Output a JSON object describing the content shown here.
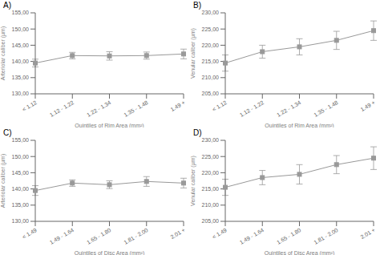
{
  "chart_data": [
    {
      "type": "line",
      "title": "A)",
      "xlabel": "Quintiles of Rim Area (mm²)",
      "ylabel": "Arteriolar caliber (µm)",
      "categories": [
        "< 1.12",
        "1.12 - 1.22",
        "1.22 - 1.34",
        "1.35 - 1.48",
        "1.49 +"
      ],
      "values": [
        139.5,
        141.8,
        141.7,
        141.8,
        142.3
      ],
      "errors": [
        1.2,
        1.0,
        1.3,
        1.1,
        1.5
      ],
      "color": "#999999",
      "marker": "square",
      "grid": false,
      "ylim": [
        130.0,
        155.0
      ],
      "yticks": [
        {
          "value": 130.0,
          "label": "130,00"
        },
        {
          "value": 135.0,
          "label": "135,00"
        },
        {
          "value": 140.0,
          "label": "140,00"
        },
        {
          "value": 145.0,
          "label": "145,00"
        },
        {
          "value": 150.0,
          "label": "150,00"
        },
        {
          "value": 155.0,
          "label": "155,00"
        }
      ]
    },
    {
      "type": "line",
      "title": "B)",
      "xlabel": "Quintiles of Rim Area (mm²)",
      "ylabel": "Venular caliber (µm)",
      "categories": [
        "< 1.12",
        "1.12 - 1.22",
        "1.22 - 1.34",
        "1.35 - 1.48",
        "1.49 +"
      ],
      "values": [
        214.5,
        218.0,
        219.5,
        221.5,
        224.5
      ],
      "errors": [
        2.5,
        2.0,
        2.5,
        2.8,
        3.0
      ],
      "color": "#999999",
      "marker": "square",
      "grid": false,
      "ylim": [
        205.0,
        230.0
      ],
      "yticks": [
        {
          "value": 205.0,
          "label": "205,00"
        },
        {
          "value": 210.0,
          "label": "210,00"
        },
        {
          "value": 215.0,
          "label": "215,00"
        },
        {
          "value": 220.0,
          "label": "220,00"
        },
        {
          "value": 225.0,
          "label": "225,00"
        },
        {
          "value": 230.0,
          "label": "230,00"
        }
      ]
    },
    {
      "type": "line",
      "title": "C)",
      "xlabel": "Quintiles of Disc Area (mm²)",
      "ylabel": "Arteriolar caliber (µm)",
      "categories": [
        "< 1.49",
        "1.49 - 1.64",
        "1.65 - 1.80",
        "1.81 - 2.00",
        "2.01 +"
      ],
      "values": [
        139.5,
        141.8,
        141.3,
        142.3,
        141.8
      ],
      "errors": [
        1.5,
        1.0,
        1.2,
        1.5,
        1.5
      ],
      "color": "#999999",
      "marker": "square",
      "grid": false,
      "ylim": [
        130.0,
        155.0
      ],
      "yticks": [
        {
          "value": 130.0,
          "label": "130,00"
        },
        {
          "value": 135.0,
          "label": "135,00"
        },
        {
          "value": 140.0,
          "label": "140,00"
        },
        {
          "value": 145.0,
          "label": "145,00"
        },
        {
          "value": 150.0,
          "label": "150,00"
        },
        {
          "value": 155.0,
          "label": "155,00"
        }
      ]
    },
    {
      "type": "line",
      "title": "D)",
      "xlabel": "Quintiles of Disc Area (mm²)",
      "ylabel": "Venular caliber (µm)",
      "categories": [
        "< 1.49",
        "1.49 - 1.64",
        "1.65 - 1.80",
        "1.81 - 2.00",
        "2.01 +"
      ],
      "values": [
        215.5,
        218.5,
        219.5,
        222.5,
        224.5
      ],
      "errors": [
        2.5,
        2.2,
        3.0,
        2.8,
        3.5
      ],
      "color": "#999999",
      "marker": "square",
      "grid": false,
      "ylim": [
        205.0,
        230.0
      ],
      "yticks": [
        {
          "value": 205.0,
          "label": "205,00"
        },
        {
          "value": 210.0,
          "label": "210,00"
        },
        {
          "value": 215.0,
          "label": "215,00"
        },
        {
          "value": 220.0,
          "label": "220,00"
        },
        {
          "value": 225.0,
          "label": "225,00"
        },
        {
          "value": 230.0,
          "label": "230,00"
        }
      ]
    }
  ]
}
